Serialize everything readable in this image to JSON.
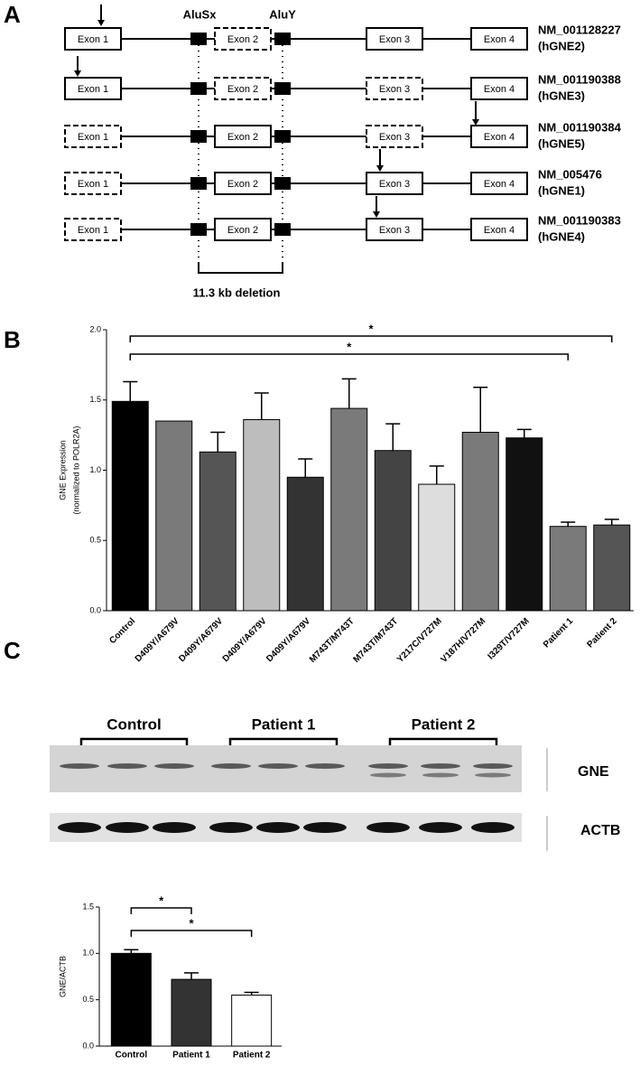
{
  "panel_labels": [
    "A",
    "B",
    "C"
  ],
  "diagram": {
    "alu": [
      "AluSx",
      "AluY"
    ],
    "deletion_label": "11.3 kb deletion",
    "rows": [
      {
        "id": "NM_001128227",
        "name": "(hGNE2)",
        "exons": [
          {
            "label": "Exon 1",
            "dashed": false
          },
          {
            "label": "Exon 2",
            "dashed": true
          },
          {
            "label": "Exon 3",
            "dashed": false
          },
          {
            "label": "Exon 4",
            "dashed": false
          }
        ]
      },
      {
        "id": "NM_001190388",
        "name": "(hGNE3)",
        "exons": [
          {
            "label": "Exon 1",
            "dashed": false
          },
          {
            "label": "Exon 2",
            "dashed": true
          },
          {
            "label": "Exon 3",
            "dashed": true
          },
          {
            "label": "Exon 4",
            "dashed": false
          }
        ]
      },
      {
        "id": "NM_001190384",
        "name": "(hGNE5)",
        "exons": [
          {
            "label": "Exon 1",
            "dashed": true
          },
          {
            "label": "Exon 2",
            "dashed": false
          },
          {
            "label": "Exon 3",
            "dashed": true
          },
          {
            "label": "Exon 4",
            "dashed": false
          }
        ]
      },
      {
        "id": "NM_005476",
        "name": "(hGNE1)",
        "exons": [
          {
            "label": "Exon 1",
            "dashed": true
          },
          {
            "label": "Exon 2",
            "dashed": false
          },
          {
            "label": "Exon 3",
            "dashed": false
          },
          {
            "label": "Exon 4",
            "dashed": false
          }
        ]
      },
      {
        "id": "NM_001190383",
        "name": "(hGNE4)",
        "exons": [
          {
            "label": "Exon 1",
            "dashed": true
          },
          {
            "label": "Exon 2",
            "dashed": false
          },
          {
            "label": "Exon 3",
            "dashed": false
          },
          {
            "label": "Exon 4",
            "dashed": false
          }
        ]
      }
    ]
  },
  "blot": {
    "groups": [
      "Control",
      "Patient 1",
      "Patient 2"
    ],
    "proteins": [
      "GNE",
      "ACTB"
    ]
  },
  "chart_data": [
    {
      "type": "bar",
      "y_label": [
        "GNE Expression",
        "(normalized to POLR2A)"
      ],
      "categories": [
        "Control",
        "D409Y/A679V",
        "D409Y/A679V",
        "D409Y/A679V",
        "D409Y/A679V",
        "M743T/M743T",
        "M743T/M743T",
        "Y217C/V727M",
        "V187H/V727M",
        "I329T/V727M",
        "Patient 1",
        "Patient 2"
      ],
      "values": [
        1.49,
        1.35,
        1.13,
        1.36,
        0.95,
        1.44,
        1.14,
        0.9,
        1.27,
        1.23,
        0.6,
        0.61
      ],
      "errors": [
        0.14,
        0,
        0.14,
        0.19,
        0.13,
        0.21,
        0.19,
        0.13,
        0.32,
        0.06,
        0.03,
        0.04
      ],
      "colors": [
        "#000000",
        "#7a7a7a",
        "#555555",
        "#bdbdbd",
        "#333333",
        "#7a7a7a",
        "#444444",
        "#dddddd",
        "#7a7a7a",
        "#111111",
        "#7a7a7a",
        "#555555"
      ],
      "ylim": [
        0,
        2
      ],
      "yticks": [
        {
          "value": 0,
          "label": "0.0"
        },
        0.5,
        {
          "value": 1,
          "label": "1.0"
        },
        1.5,
        {
          "value": 2,
          "label": "2.0"
        }
      ],
      "annotations": [
        {
          "text": "*",
          "from": 0,
          "to": 11
        },
        {
          "text": "*",
          "from": 0,
          "to": 10
        }
      ]
    },
    {
      "type": "bar",
      "y_label": [
        "GNE/ACTB"
      ],
      "categories": [
        "Control",
        "Patient 1",
        "Patient 2"
      ],
      "values": [
        1.0,
        0.72,
        0.55
      ],
      "errors": [
        0.04,
        0.07,
        0.03
      ],
      "colors": [
        "#000000",
        "#333333",
        "#ffffff"
      ],
      "ylim": [
        0,
        1.5
      ],
      "yticks": [
        {
          "value": 0,
          "label": "0.0"
        },
        0.5,
        {
          "value": 1,
          "label": "1.0"
        },
        1.5
      ],
      "annotations": [
        {
          "text": "*",
          "from": 0,
          "to": 1
        },
        {
          "text": "*",
          "from": 0,
          "to": 2
        }
      ]
    }
  ]
}
